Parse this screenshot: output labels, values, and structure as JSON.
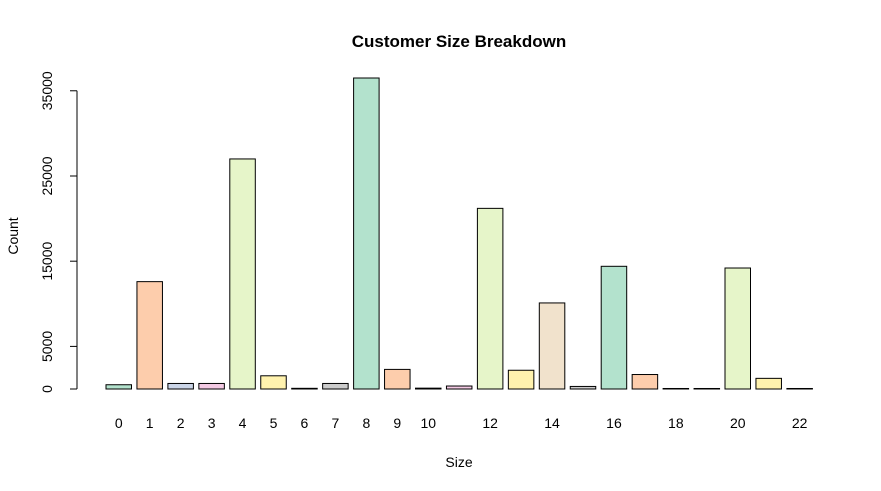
{
  "chart_data": {
    "type": "bar",
    "title": "Customer Size Breakdown",
    "xlabel": "Size",
    "ylabel": "Count",
    "ylim": [
      0,
      36500
    ],
    "yticks": [
      0,
      5000,
      15000,
      25000,
      35000
    ],
    "categories": [
      "0",
      "1",
      "2",
      "3",
      "4",
      "5",
      "6",
      "7",
      "8",
      "9",
      "10",
      "11",
      "12",
      "13",
      "14",
      "15",
      "16",
      "17",
      "18",
      "19",
      "20",
      "21",
      "22"
    ],
    "shown_category_labels": [
      "0",
      "1",
      "2",
      "3",
      "4",
      "5",
      "6",
      "7",
      "8",
      "9",
      "10",
      "12",
      "14",
      "16",
      "18",
      "20",
      "22"
    ],
    "values": [
      500,
      12600,
      650,
      650,
      27000,
      1550,
      80,
      650,
      36500,
      2300,
      100,
      350,
      21200,
      2200,
      10100,
      300,
      14400,
      1700,
      60,
      60,
      14200,
      1250,
      60
    ],
    "colors": [
      "#B3E2CD",
      "#FDCDAC",
      "#CBD5E8",
      "#F4CAE4",
      "#E6F5C9",
      "#FFF2AE",
      "#F1E2CC",
      "#CCCCCC",
      "#B3E2CD",
      "#FDCDAC",
      "#CBD5E8",
      "#F4CAE4",
      "#E6F5C9",
      "#FFF2AE",
      "#F1E2CC",
      "#CCCCCC",
      "#B3E2CD",
      "#FDCDAC",
      "#CBD5E8",
      "#F4CAE4",
      "#E6F5C9",
      "#FFF2AE",
      "#F1E2CC"
    ],
    "grid": false,
    "legend": "none"
  }
}
